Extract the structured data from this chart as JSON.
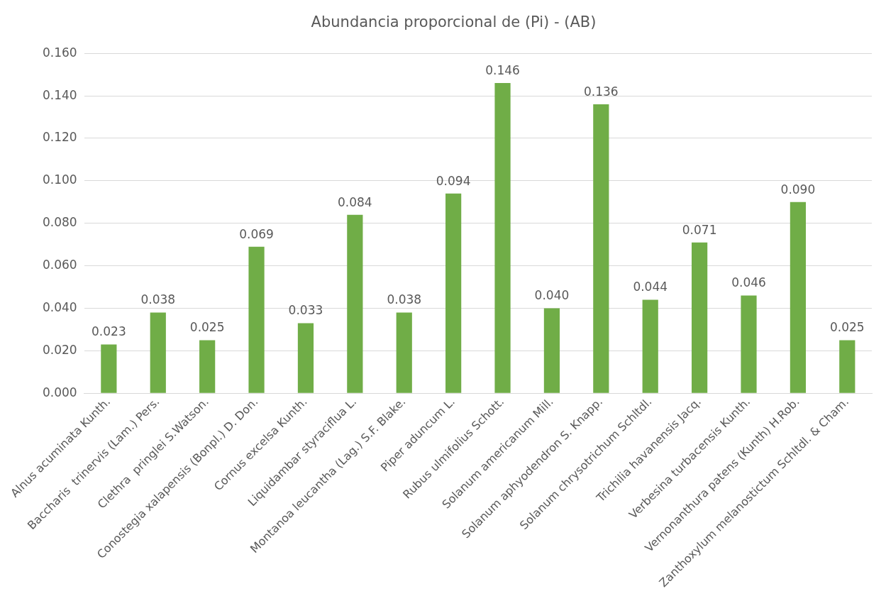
{
  "chart_data": {
    "type": "bar",
    "title": "Abundancia proporcional de (Pi) - (AB)",
    "categories": [
      "Alnus acuminata Kunth.",
      "Baccharis  trinervis (Lam.) Pers.",
      "Clethra  pringlei S.Watson.",
      "Conostegia xalapensis (Bonpl.) D. Don.",
      "Cornus excelsa Kunth.",
      "Liquidambar styraciflua L.",
      "Montanoa leucantha (Lag.) S.F. Blake.",
      "Piper aduncum L.",
      "Rubus ulmifolius Schott.",
      "Solanum americanum Mill.",
      "Solanum aphyodendron S. Knapp.",
      "Solanum chrysotrichum Schltdl.",
      "Trichilia havanensis Jacq.",
      "Verbesina turbacensis Kunth.",
      "Vernonanthura patens (Kunth) H.Rob.",
      "Zanthoxylum melanostictum Schltdl. & Cham."
    ],
    "values": [
      0.023,
      0.038,
      0.025,
      0.069,
      0.033,
      0.084,
      0.038,
      0.094,
      0.146,
      0.04,
      0.136,
      0.044,
      0.071,
      0.046,
      0.09,
      0.025
    ],
    "value_labels": [
      "0.023",
      "0.038",
      "0.025",
      "0.069",
      "0.033",
      "0.084",
      "0.038",
      "0.094",
      "0.146",
      "0.040",
      "0.136",
      "0.044",
      "0.071",
      "0.046",
      "0.090",
      "0.025"
    ],
    "color": "#70ad47",
    "ylim": [
      0,
      0.16
    ],
    "yticks": [
      {
        "value": 0,
        "label": "0.000"
      },
      {
        "value": 0.02,
        "label": "0.020"
      },
      {
        "value": 0.04,
        "label": "0.040"
      },
      {
        "value": 0.06,
        "label": "0.060"
      },
      {
        "value": 0.08,
        "label": "0.080"
      },
      {
        "value": 0.1,
        "label": "0.100"
      },
      {
        "value": 0.12,
        "label": "0.120"
      },
      {
        "value": 0.14,
        "label": "0.140"
      },
      {
        "value": 0.16,
        "label": "0.160"
      }
    ],
    "grid": "y",
    "legend": false
  }
}
